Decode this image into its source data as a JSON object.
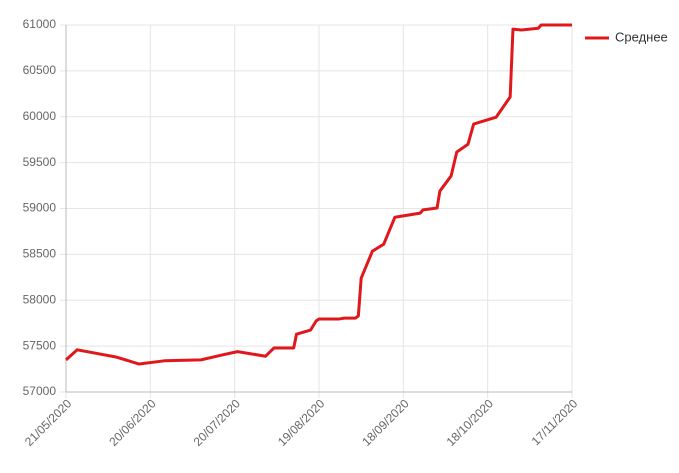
{
  "chart_data": {
    "type": "line",
    "x": [
      "21/05/2020",
      "25/05/2020",
      "08/06/2020",
      "16/06/2020",
      "25/06/2020",
      "08/07/2020",
      "15/07/2020",
      "21/07/2020",
      "31/07/2020",
      "03/08/2020",
      "10/08/2020",
      "11/08/2020",
      "16/08/2020",
      "18/08/2020",
      "19/08/2020",
      "26/08/2020",
      "28/08/2020",
      "01/09/2020",
      "02/09/2020",
      "03/09/2020",
      "07/09/2020",
      "11/09/2020",
      "15/09/2020",
      "18/09/2020",
      "24/09/2020",
      "25/09/2020",
      "30/09/2020",
      "01/10/2020",
      "05/10/2020",
      "07/10/2020",
      "11/10/2020",
      "13/10/2020",
      "21/10/2020",
      "26/10/2020",
      "27/10/2020",
      "30/10/2020",
      "05/11/2020",
      "06/11/2020",
      "17/11/2020"
    ],
    "series": [
      {
        "name": "Среднее",
        "color": "#e0181b",
        "values": [
          57350,
          57460,
          57380,
          57305,
          57340,
          57350,
          57400,
          57440,
          57390,
          57480,
          57480,
          57630,
          57675,
          57775,
          57795,
          57795,
          57805,
          57805,
          57830,
          58240,
          58535,
          58610,
          58905,
          58920,
          58950,
          58985,
          59005,
          59190,
          59355,
          59615,
          59700,
          59920,
          59995,
          60215,
          60955,
          60945,
          60965,
          61000,
          61000
        ]
      }
    ],
    "xlim": [
      "21/05/2020",
      "17/11/2020"
    ],
    "xticks": [
      "21/05/2020",
      "20/06/2020",
      "20/07/2020",
      "19/08/2020",
      "18/09/2020",
      "18/10/2020",
      "17/11/2020"
    ],
    "ylim": [
      57000,
      61000
    ],
    "yticks": [
      57000,
      57500,
      58000,
      58500,
      59000,
      59500,
      60000,
      60500,
      61000
    ],
    "grid": true,
    "legend": "right"
  }
}
